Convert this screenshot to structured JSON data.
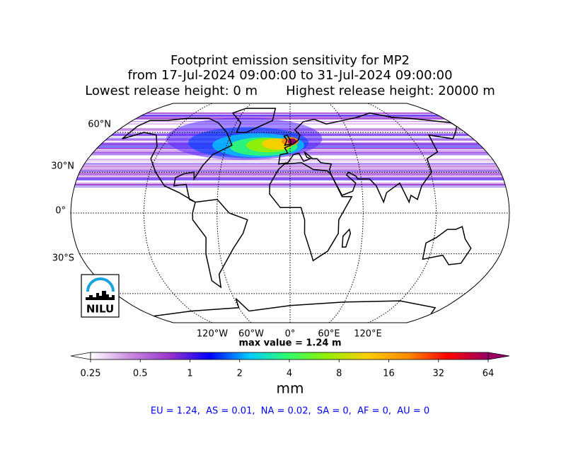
{
  "header": {
    "title_lines": [
      "Footprint emission sensitivity for MP2",
      "from 17-Jul-2024 09:00:00 to 31-Jul-2024 09:00:00",
      "Lowest release height: 0 m       Highest release height: 20000 m"
    ]
  },
  "map": {
    "lat_labels": [
      "60°N",
      "30°N",
      "0°",
      "30°S"
    ],
    "lon_labels": [
      "120°W",
      "60°W",
      "0°",
      "60°E",
      "120°E"
    ],
    "max_value_label": "max value = 1.24 m"
  },
  "logo": {
    "text": "NILU"
  },
  "colorbar": {
    "ticks": [
      0.25,
      0.5,
      1,
      2,
      4,
      8,
      16,
      32,
      64
    ],
    "log_scale": true,
    "label": "mm",
    "colors": [
      "#ffffff",
      "#c98be0",
      "#9933cc",
      "#0000ff",
      "#00ccff",
      "#33ff66",
      "#99ee00",
      "#ffcc00",
      "#ff8800",
      "#ff0000",
      "#990066"
    ]
  },
  "summary": "EU = 1.24,  AS = 0.01,  NA = 0.02,  SA = 0,  AF = 0,  AU = 0"
}
